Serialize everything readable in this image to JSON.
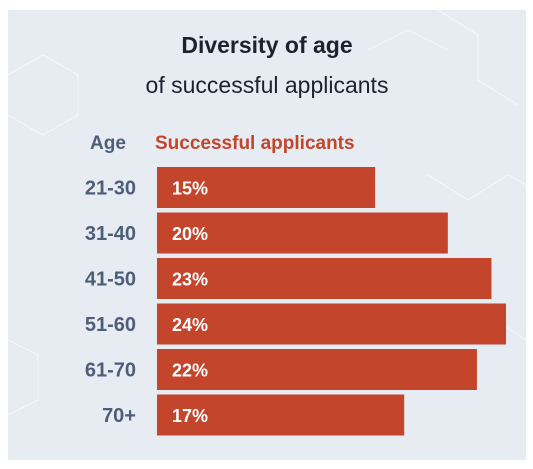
{
  "title": "Diversity of age",
  "subtitle": "of successful applicants",
  "headers": {
    "category": "Age",
    "value": "Successful applicants"
  },
  "colors": {
    "bar": "#c3452b",
    "label": "#4e5d78",
    "title": "#1e2230",
    "background": "#e7ecf3"
  },
  "chart_data": {
    "type": "bar",
    "orientation": "horizontal",
    "categories": [
      "21-30",
      "31-40",
      "41-50",
      "51-60",
      "61-70",
      "70+"
    ],
    "values": [
      15,
      20,
      23,
      24,
      22,
      17
    ],
    "value_labels": [
      "15%",
      "20%",
      "23%",
      "24%",
      "22%",
      "17%"
    ],
    "unit": "%"
  }
}
